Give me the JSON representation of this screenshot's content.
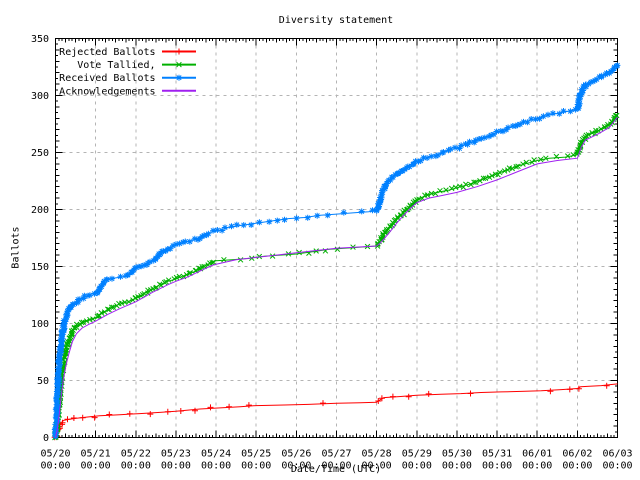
{
  "window": {
    "background": "#ffffff"
  },
  "chart_data": {
    "type": "line",
    "title": "Diversity statement",
    "xlabel": "Date/Time (UTC)",
    "ylabel": "Ballots",
    "ylim": [
      0,
      350
    ],
    "ytick_interval": 50,
    "grid": true,
    "legend_position": "top-left-inside",
    "colors": {
      "axis": "#000000",
      "grid": "#b4b4b4",
      "background": "#ffffff"
    },
    "x_ticks": [
      {
        "date": "05/20",
        "time": "00:00"
      },
      {
        "date": "05/21",
        "time": "00:00"
      },
      {
        "date": "05/22",
        "time": "00:00"
      },
      {
        "date": "05/23",
        "time": "00:00"
      },
      {
        "date": "05/24",
        "time": "00:00"
      },
      {
        "date": "05/25",
        "time": "00:00"
      },
      {
        "date": "05/26",
        "time": "00:00"
      },
      {
        "date": "05/27",
        "time": "00:00"
      },
      {
        "date": "05/28",
        "time": "00:00"
      },
      {
        "date": "05/29",
        "time": "00:00"
      },
      {
        "date": "05/30",
        "time": "00:00"
      },
      {
        "date": "05/31",
        "time": "00:00"
      },
      {
        "date": "06/01",
        "time": "00:00"
      },
      {
        "date": "06/02",
        "time": "00:00"
      },
      {
        "date": "06/03",
        "time": "00:00"
      }
    ],
    "series": [
      {
        "name": "Rejected Ballots",
        "color": "#ff0000",
        "marker": "plus",
        "marker_density": 0.7,
        "points": [
          [
            0,
            0
          ],
          [
            0.05,
            5
          ],
          [
            0.1,
            10
          ],
          [
            0.15,
            13
          ],
          [
            0.2,
            15
          ],
          [
            0.35,
            16
          ],
          [
            0.55,
            17
          ],
          [
            0.8,
            18
          ],
          [
            1.1,
            19
          ],
          [
            1.6,
            20
          ],
          [
            2.1,
            21
          ],
          [
            2.6,
            22
          ],
          [
            3.0,
            23
          ],
          [
            3.3,
            24
          ],
          [
            3.6,
            25
          ],
          [
            4.1,
            26
          ],
          [
            4.6,
            27
          ],
          [
            5.0,
            28
          ],
          [
            5.7,
            28.5
          ],
          [
            6.3,
            29
          ],
          [
            7.0,
            30
          ],
          [
            7.6,
            30.5
          ],
          [
            8.0,
            31
          ],
          [
            8.08,
            33
          ],
          [
            8.18,
            35
          ],
          [
            8.6,
            36
          ],
          [
            9.0,
            37
          ],
          [
            9.6,
            38
          ],
          [
            10.1,
            38.5
          ],
          [
            10.6,
            39.5
          ],
          [
            11.1,
            40
          ],
          [
            11.7,
            40.5
          ],
          [
            12.1,
            41
          ],
          [
            12.6,
            42
          ],
          [
            13.0,
            43
          ],
          [
            13.08,
            44.5
          ],
          [
            13.3,
            45
          ],
          [
            13.6,
            45.5
          ],
          [
            13.85,
            46.5
          ],
          [
            14,
            47
          ]
        ]
      },
      {
        "name": "Vote Tallied,",
        "color": "#00b000",
        "marker": "cross",
        "marker_density": 1,
        "points": [
          [
            0,
            0
          ],
          [
            0.04,
            10
          ],
          [
            0.08,
            25
          ],
          [
            0.12,
            42
          ],
          [
            0.16,
            55
          ],
          [
            0.2,
            65
          ],
          [
            0.25,
            75
          ],
          [
            0.32,
            85
          ],
          [
            0.42,
            93
          ],
          [
            0.52,
            98
          ],
          [
            0.66,
            101
          ],
          [
            0.82,
            103
          ],
          [
            1.0,
            105
          ],
          [
            1.2,
            110
          ],
          [
            1.4,
            114
          ],
          [
            1.6,
            117
          ],
          [
            1.8,
            119
          ],
          [
            2.0,
            122
          ],
          [
            2.2,
            126
          ],
          [
            2.4,
            130
          ],
          [
            2.6,
            134
          ],
          [
            2.8,
            137
          ],
          [
            3.0,
            139
          ],
          [
            3.2,
            142
          ],
          [
            3.5,
            146
          ],
          [
            3.7,
            150
          ],
          [
            3.9,
            154
          ],
          [
            4.0,
            155
          ],
          [
            4.4,
            156
          ],
          [
            4.8,
            157
          ],
          [
            5.2,
            159
          ],
          [
            5.6,
            160
          ],
          [
            6.0,
            161
          ],
          [
            6.4,
            163
          ],
          [
            6.8,
            165
          ],
          [
            7.2,
            166
          ],
          [
            7.6,
            167
          ],
          [
            8.0,
            168
          ],
          [
            8.06,
            171
          ],
          [
            8.15,
            177
          ],
          [
            8.25,
            182
          ],
          [
            8.4,
            187
          ],
          [
            8.5,
            191
          ],
          [
            8.62,
            195
          ],
          [
            8.75,
            200
          ],
          [
            8.9,
            205
          ],
          [
            9.0,
            208
          ],
          [
            9.15,
            211
          ],
          [
            9.3,
            213
          ],
          [
            9.5,
            215
          ],
          [
            9.8,
            217
          ],
          [
            10.0,
            219
          ],
          [
            10.3,
            222
          ],
          [
            10.6,
            226
          ],
          [
            10.9,
            230
          ],
          [
            11.2,
            234
          ],
          [
            11.5,
            238
          ],
          [
            11.8,
            241
          ],
          [
            12.0,
            243
          ],
          [
            12.3,
            245
          ],
          [
            12.7,
            246
          ],
          [
            13.0,
            248
          ],
          [
            13.05,
            253
          ],
          [
            13.1,
            258
          ],
          [
            13.17,
            262
          ],
          [
            13.25,
            265
          ],
          [
            13.45,
            268
          ],
          [
            13.65,
            271
          ],
          [
            13.8,
            275
          ],
          [
            13.9,
            278
          ],
          [
            14,
            283
          ]
        ]
      },
      {
        "name": "Received Ballots",
        "color": "#0080ff",
        "marker": "star",
        "marker_density": 1,
        "points": [
          [
            0,
            0
          ],
          [
            0.03,
            20
          ],
          [
            0.06,
            45
          ],
          [
            0.1,
            68
          ],
          [
            0.13,
            80
          ],
          [
            0.17,
            90
          ],
          [
            0.21,
            100
          ],
          [
            0.26,
            107
          ],
          [
            0.33,
            112
          ],
          [
            0.42,
            116
          ],
          [
            0.52,
            119
          ],
          [
            0.65,
            122
          ],
          [
            0.78,
            124
          ],
          [
            0.9,
            126
          ],
          [
            1.0,
            127
          ],
          [
            1.1,
            131
          ],
          [
            1.2,
            136
          ],
          [
            1.3,
            139
          ],
          [
            1.5,
            140
          ],
          [
            1.7,
            141
          ],
          [
            1.85,
            144
          ],
          [
            2.0,
            148
          ],
          [
            2.15,
            151
          ],
          [
            2.3,
            153
          ],
          [
            2.5,
            157
          ],
          [
            2.65,
            162
          ],
          [
            2.8,
            166
          ],
          [
            2.95,
            168
          ],
          [
            3.1,
            170
          ],
          [
            3.3,
            172
          ],
          [
            3.5,
            174
          ],
          [
            3.7,
            177
          ],
          [
            3.85,
            180
          ],
          [
            4.0,
            181
          ],
          [
            4.3,
            184
          ],
          [
            4.6,
            186
          ],
          [
            5.0,
            188
          ],
          [
            5.4,
            190
          ],
          [
            5.8,
            192
          ],
          [
            6.2,
            193
          ],
          [
            6.6,
            195
          ],
          [
            7.0,
            196
          ],
          [
            7.4,
            197
          ],
          [
            7.8,
            198
          ],
          [
            8.0,
            199
          ],
          [
            8.05,
            204
          ],
          [
            8.1,
            210
          ],
          [
            8.15,
            216
          ],
          [
            8.22,
            221
          ],
          [
            8.3,
            225
          ],
          [
            8.45,
            229
          ],
          [
            8.6,
            233
          ],
          [
            8.75,
            236
          ],
          [
            8.9,
            240
          ],
          [
            9.0,
            242
          ],
          [
            9.2,
            245
          ],
          [
            9.5,
            248
          ],
          [
            9.8,
            252
          ],
          [
            10.0,
            254
          ],
          [
            10.3,
            258
          ],
          [
            10.6,
            262
          ],
          [
            10.9,
            266
          ],
          [
            11.1,
            269
          ],
          [
            11.4,
            273
          ],
          [
            11.7,
            277
          ],
          [
            12.0,
            280
          ],
          [
            12.3,
            283
          ],
          [
            12.6,
            285
          ],
          [
            12.9,
            287
          ],
          [
            13.0,
            288
          ],
          [
            13.04,
            295
          ],
          [
            13.09,
            302
          ],
          [
            13.14,
            306
          ],
          [
            13.2,
            309
          ],
          [
            13.35,
            312
          ],
          [
            13.5,
            315
          ],
          [
            13.65,
            318
          ],
          [
            13.8,
            321
          ],
          [
            13.9,
            324
          ],
          [
            14,
            327
          ]
        ]
      },
      {
        "name": "Acknowledgements",
        "color": "#a020f0",
        "marker": "none",
        "marker_density": 0,
        "points": [
          [
            0,
            0
          ],
          [
            0.05,
            8
          ],
          [
            0.1,
            22
          ],
          [
            0.15,
            38
          ],
          [
            0.2,
            52
          ],
          [
            0.26,
            63
          ],
          [
            0.33,
            73
          ],
          [
            0.42,
            84
          ],
          [
            0.52,
            91
          ],
          [
            0.66,
            96
          ],
          [
            0.82,
            99
          ],
          [
            1.0,
            102
          ],
          [
            1.3,
            108
          ],
          [
            1.6,
            113
          ],
          [
            2.0,
            119
          ],
          [
            2.4,
            127
          ],
          [
            2.8,
            134
          ],
          [
            3.0,
            137
          ],
          [
            3.3,
            141
          ],
          [
            3.6,
            146
          ],
          [
            3.9,
            151
          ],
          [
            4.0,
            152
          ],
          [
            4.5,
            156
          ],
          [
            5.0,
            158
          ],
          [
            5.5,
            160
          ],
          [
            6.0,
            162
          ],
          [
            6.5,
            164
          ],
          [
            7.0,
            166
          ],
          [
            7.5,
            167
          ],
          [
            8.0,
            168
          ],
          [
            8.1,
            171
          ],
          [
            8.3,
            179
          ],
          [
            8.5,
            188
          ],
          [
            8.7,
            196
          ],
          [
            8.9,
            203
          ],
          [
            9.0,
            206
          ],
          [
            9.3,
            210
          ],
          [
            9.6,
            212
          ],
          [
            10.0,
            215
          ],
          [
            10.5,
            220
          ],
          [
            11.0,
            226
          ],
          [
            11.5,
            233
          ],
          [
            12.0,
            240
          ],
          [
            12.5,
            243
          ],
          [
            13.0,
            245
          ],
          [
            13.1,
            255
          ],
          [
            13.2,
            261
          ],
          [
            13.5,
            266
          ],
          [
            13.8,
            272
          ],
          [
            14,
            281
          ]
        ]
      }
    ]
  }
}
